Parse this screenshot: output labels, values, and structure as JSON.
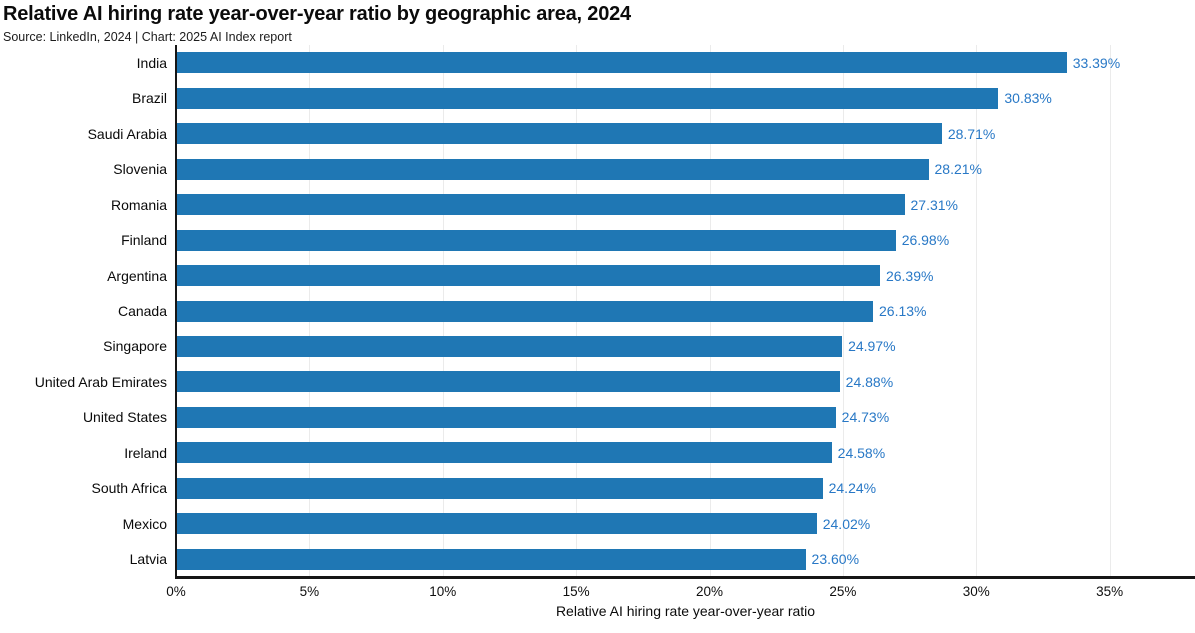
{
  "chart_data": {
    "type": "bar",
    "orientation": "horizontal",
    "title": "Relative AI hiring rate year-over-year ratio by geographic area, 2024",
    "source": "Source: LinkedIn, 2024 | Chart: 2025 AI Index report",
    "categories": [
      "India",
      "Brazil",
      "Saudi Arabia",
      "Slovenia",
      "Romania",
      "Finland",
      "Argentina",
      "Canada",
      "Singapore",
      "United Arab Emirates",
      "United States",
      "Ireland",
      "South Africa",
      "Mexico",
      "Latvia"
    ],
    "values": [
      33.39,
      30.83,
      28.71,
      28.21,
      27.31,
      26.98,
      26.39,
      26.13,
      24.97,
      24.88,
      24.73,
      24.58,
      24.24,
      24.02,
      23.6
    ],
    "value_labels": [
      "33.39%",
      "30.83%",
      "28.71%",
      "28.21%",
      "27.31%",
      "26.98%",
      "26.39%",
      "26.13%",
      "24.97%",
      "24.88%",
      "24.73%",
      "24.58%",
      "24.24%",
      "24.02%",
      "23.60%"
    ],
    "xlabel": "Relative AI hiring rate year-over-year ratio",
    "ylabel": "",
    "x_ticks": [
      "0%",
      "5%",
      "10%",
      "15%",
      "20%",
      "25%",
      "30%",
      "35%"
    ],
    "x_tick_values": [
      0,
      5,
      10,
      15,
      20,
      25,
      30,
      35
    ],
    "xlim": [
      0,
      38.2
    ],
    "grid": "vertical",
    "legend": "none",
    "colors": {
      "bar": "#1F77B4",
      "value_label": "#2878C6",
      "axis": "#161616",
      "gridline": "#EBEBEB"
    }
  }
}
